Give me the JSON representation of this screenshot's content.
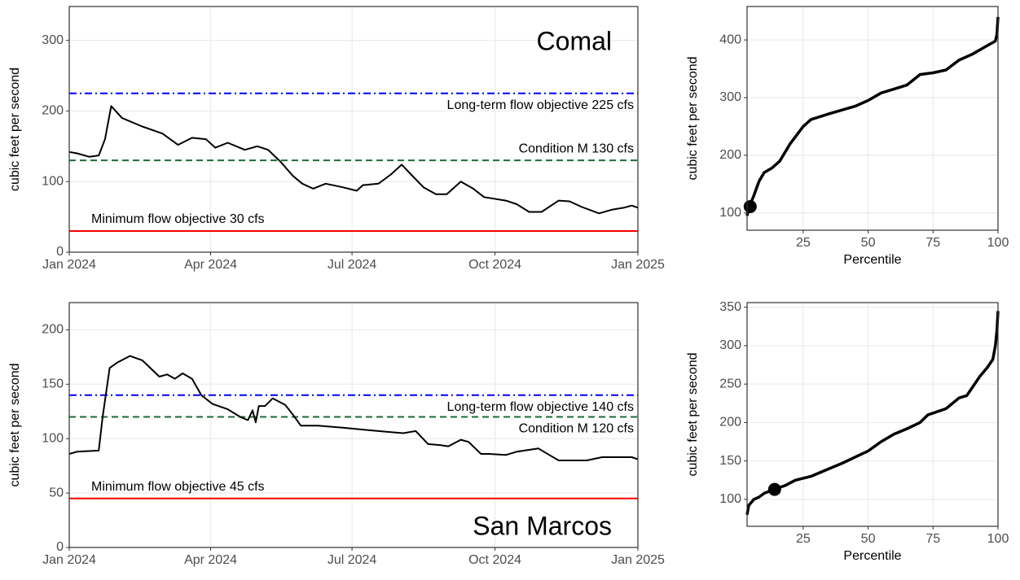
{
  "chart_data": [
    {
      "type": "line",
      "title": "Comal",
      "title_pos": "top-right",
      "ylabel": "cubic feet per second",
      "x": [
        0,
        5,
        13,
        19,
        23,
        27,
        34,
        47,
        60,
        70,
        79,
        88,
        94,
        102,
        113,
        121,
        128,
        136,
        144,
        150,
        157,
        165,
        176,
        185,
        189,
        199,
        207,
        214,
        220,
        228,
        236,
        243,
        252,
        260,
        267,
        281,
        288,
        296,
        304,
        315,
        322,
        330,
        341,
        349,
        357,
        362,
        366
      ],
      "values": [
        142,
        140,
        135,
        137,
        160,
        207,
        190,
        178,
        168,
        152,
        162,
        160,
        148,
        155,
        145,
        150,
        145,
        128,
        108,
        97,
        90,
        97,
        92,
        87,
        95,
        97,
        110,
        124,
        110,
        92,
        82,
        82,
        100,
        90,
        78,
        73,
        68,
        57,
        57,
        73,
        72,
        64,
        55,
        60,
        63,
        66,
        63
      ],
      "color": "#000000",
      "xlim": [
        0,
        366
      ],
      "xticks": [
        {
          "value": 0,
          "label": "Jan 2024"
        },
        {
          "value": 91,
          "label": "Apr 2024"
        },
        {
          "value": 182,
          "label": "Jul 2024"
        },
        {
          "value": 274,
          "label": "Oct 2024"
        },
        {
          "value": 366,
          "label": "Jan 2025"
        }
      ],
      "ylim": [
        0,
        348
      ],
      "yticks": [
        0,
        100,
        200,
        300
      ],
      "grid": true,
      "hlines": [
        {
          "value": 225,
          "label": "Long-term flow objective 225 cfs",
          "color": "#0000ff",
          "style": "dashdot",
          "label_pos": "below-right"
        },
        {
          "value": 130,
          "label": "Condition M 130 cfs",
          "color": "#1b6b3a",
          "style": "dashed",
          "label_pos": "above-right"
        },
        {
          "value": 30,
          "label": "Minimum flow objective 30 cfs",
          "color": "#ff0000",
          "style": "solid",
          "label_pos": "above-left"
        }
      ]
    },
    {
      "type": "line",
      "ylabel": "cubic feet per second",
      "xlabel": "Percentile",
      "x": [
        3.4,
        4,
        6,
        8,
        10,
        13,
        16,
        20,
        25,
        28,
        35,
        45,
        50,
        55,
        60,
        65,
        70,
        75,
        80,
        85,
        90,
        95,
        99,
        99.6,
        100
      ],
      "values": [
        95,
        108,
        130,
        155,
        170,
        178,
        190,
        220,
        250,
        262,
        272,
        285,
        295,
        308,
        315,
        322,
        340,
        343,
        348,
        365,
        375,
        388,
        398,
        410,
        440
      ],
      "color": "#000000",
      "point": {
        "x": 4.6,
        "y": 111
      },
      "xlim": [
        3.4,
        100
      ],
      "xticks": [
        25,
        50,
        75,
        100
      ],
      "ylim": [
        70,
        458
      ],
      "yticks": [
        100,
        200,
        300,
        400
      ],
      "grid": true
    },
    {
      "type": "line",
      "title": "San Marcos",
      "title_pos": "bottom-right",
      "ylabel": "cubic feet per second",
      "x": [
        0,
        5,
        19,
        21.5,
        26,
        31,
        39,
        47,
        58,
        63,
        68,
        73,
        79,
        85,
        92,
        102,
        110,
        115,
        118,
        120,
        122,
        126,
        131,
        139,
        144,
        149,
        160,
        176,
        191,
        207,
        215,
        223,
        231,
        239,
        244,
        252,
        257,
        265,
        270,
        281,
        288,
        302,
        309,
        315,
        322,
        333,
        343,
        354,
        362,
        366
      ],
      "values": [
        86,
        88,
        89,
        120,
        165,
        170,
        176,
        172,
        157,
        159,
        155,
        160,
        155,
        140,
        132,
        127,
        120,
        117,
        126,
        115,
        130,
        130,
        137,
        131,
        122,
        112,
        112,
        110,
        108,
        106,
        105,
        107,
        95,
        94,
        93,
        99,
        97,
        86,
        86,
        85,
        88,
        91,
        85,
        80,
        80,
        80,
        83,
        83,
        83,
        81
      ],
      "color": "#000000",
      "xlim": [
        0,
        366
      ],
      "xticks": [
        {
          "value": 0,
          "label": "Jan 2024"
        },
        {
          "value": 91,
          "label": "Apr 2024"
        },
        {
          "value": 182,
          "label": "Jul 2024"
        },
        {
          "value": 274,
          "label": "Oct 2024"
        },
        {
          "value": 366,
          "label": "Jan 2025"
        }
      ],
      "ylim": [
        0,
        225
      ],
      "yticks": [
        0,
        50,
        100,
        150,
        200
      ],
      "grid": true,
      "hlines": [
        {
          "value": 140,
          "label": "Long-term flow objective 140 cfs",
          "color": "#0000ff",
          "style": "dashdot",
          "label_pos": "below-right"
        },
        {
          "value": 120,
          "label": "Condition M 120 cfs",
          "color": "#1b6b3a",
          "style": "dashed",
          "label_pos": "below-right"
        },
        {
          "value": 45,
          "label": "Minimum flow objective 45 cfs",
          "color": "#ff0000",
          "style": "solid",
          "label_pos": "above-left"
        }
      ]
    },
    {
      "type": "line",
      "ylabel": "cubic feet per second",
      "xlabel": "Percentile",
      "x": [
        3.4,
        4,
        6,
        8,
        10,
        13,
        18,
        22,
        28,
        35,
        40,
        45,
        50,
        55,
        60,
        65,
        70,
        73,
        80,
        85,
        88,
        90,
        93,
        96,
        98,
        99,
        99.6,
        100
      ],
      "values": [
        80,
        92,
        100,
        103,
        108,
        112,
        118,
        125,
        130,
        140,
        147,
        155,
        163,
        175,
        185,
        192,
        200,
        210,
        218,
        232,
        235,
        245,
        260,
        272,
        282,
        300,
        320,
        345
      ],
      "color": "#000000",
      "point": {
        "x": 14,
        "y": 113
      },
      "xlim": [
        3.4,
        100
      ],
      "xticks": [
        25,
        50,
        75,
        100
      ],
      "ylim": [
        65,
        356
      ],
      "yticks": [
        100,
        150,
        200,
        250,
        300,
        350
      ],
      "grid": true
    }
  ]
}
